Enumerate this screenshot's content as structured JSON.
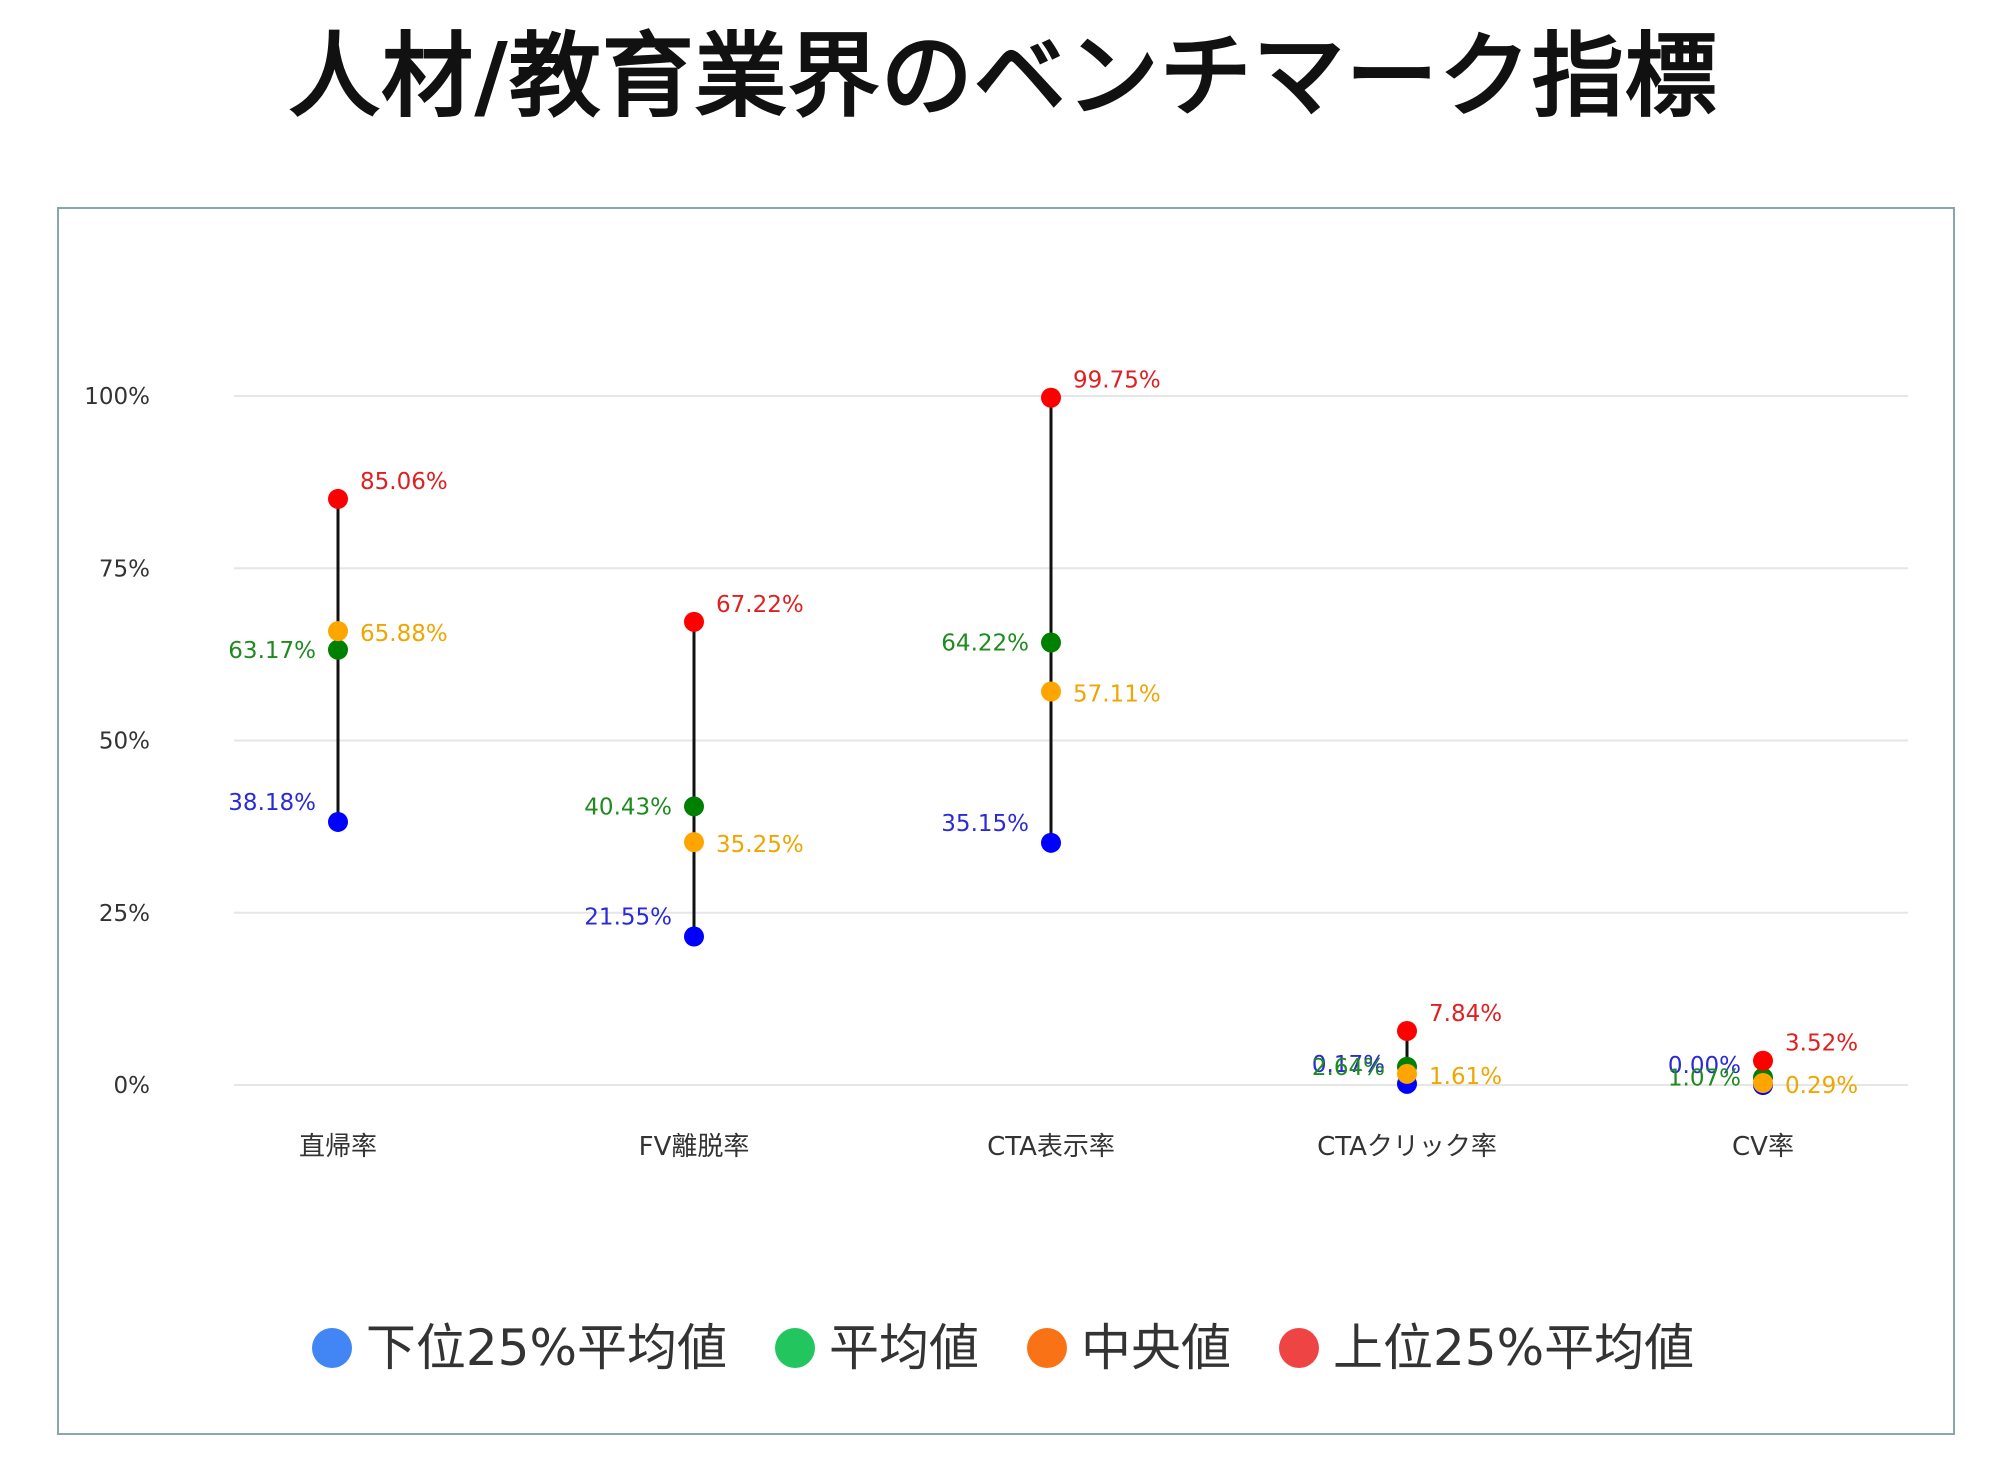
{
  "page": {
    "title": "人材/教育業界のベンチマーク指標"
  },
  "chart_data": {
    "type": "scatter",
    "title": "人材/教育業界のベンチマーク指標",
    "categories": [
      "直帰率",
      "FV離脱率",
      "CTA表示率",
      "CTAクリック率",
      "CV率"
    ],
    "ylim": [
      0,
      100
    ],
    "yticks": [
      {
        "value": 0,
        "label": "0%"
      },
      {
        "value": 25,
        "label": "25%"
      },
      {
        "value": 50,
        "label": "50%"
      },
      {
        "value": 75,
        "label": "75%"
      },
      {
        "value": 100,
        "label": "100%"
      }
    ],
    "grid": true,
    "legend_position": "bottom",
    "range_line_color": "#111111",
    "series": [
      {
        "key": "low",
        "name": "下位25%平均値",
        "point_color": "#0000ff",
        "label_color": "#2a2ad8",
        "legend_color": "#4285f4",
        "label_side": "left",
        "values": [
          38.18,
          21.55,
          35.15,
          0.17,
          0.0
        ],
        "labels": [
          "38.18%",
          "21.55%",
          "35.15%",
          "0.17%",
          "0.00%"
        ]
      },
      {
        "key": "avg",
        "name": "平均値",
        "point_color": "#008000",
        "label_color": "#1f8a1f",
        "legend_color": "#22c55e",
        "label_side": "left",
        "values": [
          63.17,
          40.43,
          64.22,
          2.64,
          1.07
        ],
        "labels": [
          "63.17%",
          "40.43%",
          "64.22%",
          "2.64%",
          "1.07%"
        ]
      },
      {
        "key": "median",
        "name": "中央値",
        "point_color": "#ffa500",
        "label_color": "#f0a500",
        "legend_color": "#f97316",
        "label_side": "right",
        "values": [
          65.88,
          35.25,
          57.11,
          1.61,
          0.29
        ],
        "labels": [
          "65.88%",
          "35.25%",
          "57.11%",
          "1.61%",
          "0.29%"
        ]
      },
      {
        "key": "high",
        "name": "上位25%平均値",
        "point_color": "#ff0000",
        "label_color": "#e02020",
        "legend_color": "#ef4444",
        "label_side": "right",
        "values": [
          85.06,
          67.22,
          99.75,
          7.84,
          3.52
        ],
        "labels": [
          "85.06%",
          "67.22%",
          "99.75%",
          "7.84%",
          "3.52%"
        ]
      }
    ]
  }
}
